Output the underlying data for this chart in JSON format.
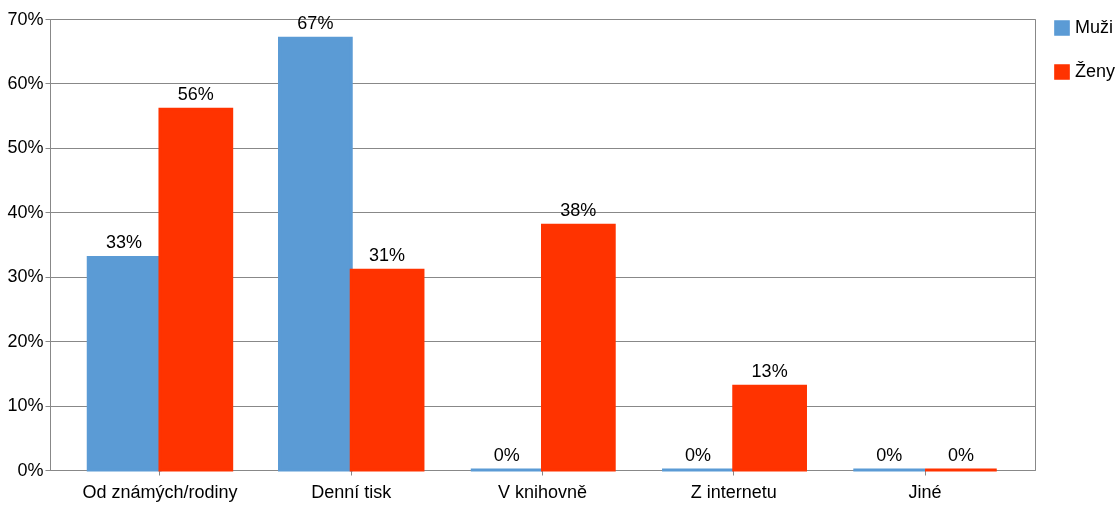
{
  "chart_data": {
    "type": "bar",
    "categories": [
      "Od známých/rodiny",
      "Denní tisk",
      "V knihovně",
      "Z internetu",
      "Jiné"
    ],
    "series": [
      {
        "name": "Muži",
        "color": "#5b9bd5",
        "values": [
          33,
          67,
          0,
          0,
          0
        ],
        "value_labels": [
          "33%",
          "67%",
          "0%",
          "0%",
          "0%"
        ]
      },
      {
        "name": "Ženy",
        "color": "#ff3300",
        "values": [
          56,
          31,
          38,
          13,
          0
        ],
        "value_labels": [
          "56%",
          "31%",
          "38%",
          "13%",
          "0%"
        ]
      }
    ],
    "ylim": [
      0,
      70
    ],
    "yticks": [
      {
        "value": 0,
        "label": "0%"
      },
      {
        "value": 10,
        "label": "10%"
      },
      {
        "value": 20,
        "label": "20%"
      },
      {
        "value": 30,
        "label": "30%"
      },
      {
        "value": 40,
        "label": "40%"
      },
      {
        "value": 50,
        "label": "50%"
      },
      {
        "value": 60,
        "label": "60%"
      },
      {
        "value": 70,
        "label": "70%"
      }
    ],
    "grid": "y",
    "legend": "right"
  }
}
